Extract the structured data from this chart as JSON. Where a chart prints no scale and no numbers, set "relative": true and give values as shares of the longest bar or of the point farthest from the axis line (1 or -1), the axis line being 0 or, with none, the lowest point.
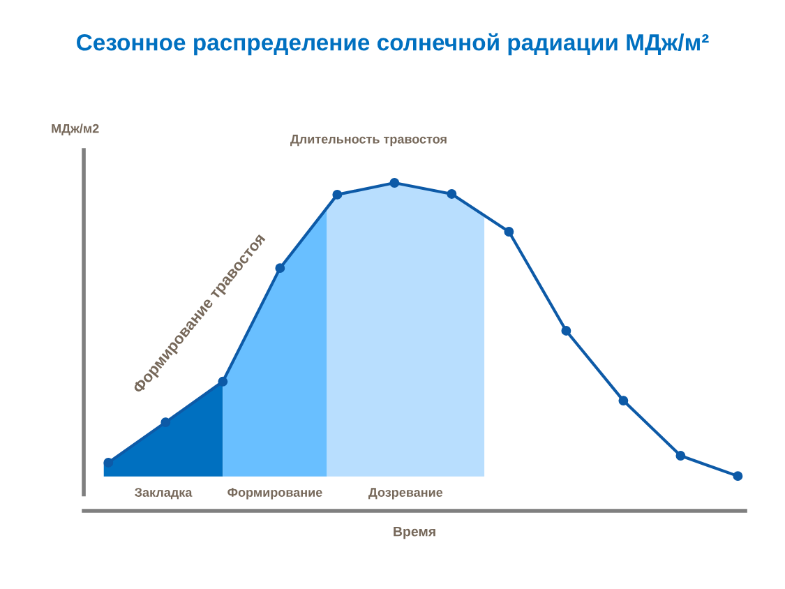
{
  "chart_data": {
    "type": "line",
    "title": "Сезонное распределение солнечной радиации МДж/м²",
    "xlabel": "Время",
    "ylabel": "МДж/м2",
    "relative": true,
    "marker": "circle",
    "line_style": "solid",
    "categories": [
      null,
      null,
      null,
      null,
      null,
      null,
      null,
      null,
      null,
      null,
      null,
      null
    ],
    "series": [
      {
        "color": "#0d5aa7",
        "values": [
          0.147,
          0.27,
          0.394,
          0.74,
          0.964,
          1,
          0.966,
          0.851,
          0.549,
          0.336,
          0.168,
          0.106
        ]
      }
    ],
    "annotations": [
      "Длительность травостоя",
      "Формирование травостоя",
      "Закладка",
      "Формирование",
      "Дозревание"
    ]
  }
}
